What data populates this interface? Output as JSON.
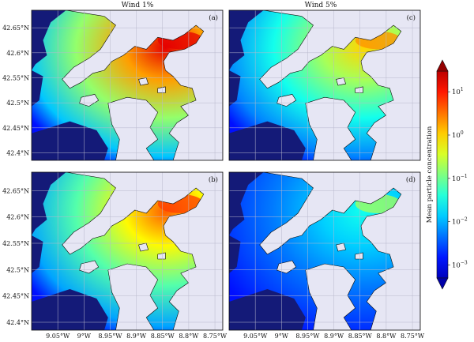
{
  "chart_data": {
    "type": "heatmap",
    "columns": [
      {
        "title": "Wind 1%",
        "panels": [
          "(a)",
          "(b)"
        ]
      },
      {
        "title": "Wind 5%",
        "panels": [
          "(c)",
          "(d)"
        ]
      }
    ],
    "panels": [
      {
        "label": "(a)",
        "wind": "Wind 1%",
        "level": 1.0
      },
      {
        "label": "(b)",
        "wind": "Wind 1%",
        "level": 0.85
      },
      {
        "label": "(c)",
        "wind": "Wind 5%",
        "level": 0.7
      },
      {
        "label": "(d)",
        "wind": "Wind 5%",
        "level": 0.35
      }
    ],
    "lat_ticks": [
      "42.65°N",
      "42.6°N",
      "42.55°N",
      "42.5°N",
      "42.45°N",
      "42.4°N"
    ],
    "lat_values": [
      42.65,
      42.6,
      42.55,
      42.5,
      42.45,
      42.4
    ],
    "lon_ticks": [
      "9.05°W",
      "9°W",
      "8.95°W",
      "8.9°W",
      "8.85°W",
      "8.8°W",
      "8.75°W"
    ],
    "lon_values": [
      -9.05,
      -9.0,
      -8.95,
      -8.9,
      -8.85,
      -8.8,
      -8.75
    ],
    "lat_range": [
      42.385,
      42.685
    ],
    "lon_range": [
      -9.1,
      -8.735
    ],
    "grid": true,
    "colorbar": {
      "label": "Mean particle concentration",
      "scale": "log",
      "range": [
        0.0005,
        30
      ],
      "ticks": [
        {
          "value": 10,
          "base": "10",
          "exp": "1"
        },
        {
          "value": 1,
          "base": "10",
          "exp": "0"
        },
        {
          "value": 0.1,
          "base": "10",
          "exp": "−1"
        },
        {
          "value": 0.01,
          "base": "10",
          "exp": "−2"
        },
        {
          "value": 0.001,
          "base": "10",
          "exp": "−3"
        }
      ],
      "extend": "both",
      "colormap": "jet"
    },
    "colors": {
      "land": "#e6e6f4",
      "open_sea": "#141a78",
      "coast": "#0a0a0a"
    }
  }
}
